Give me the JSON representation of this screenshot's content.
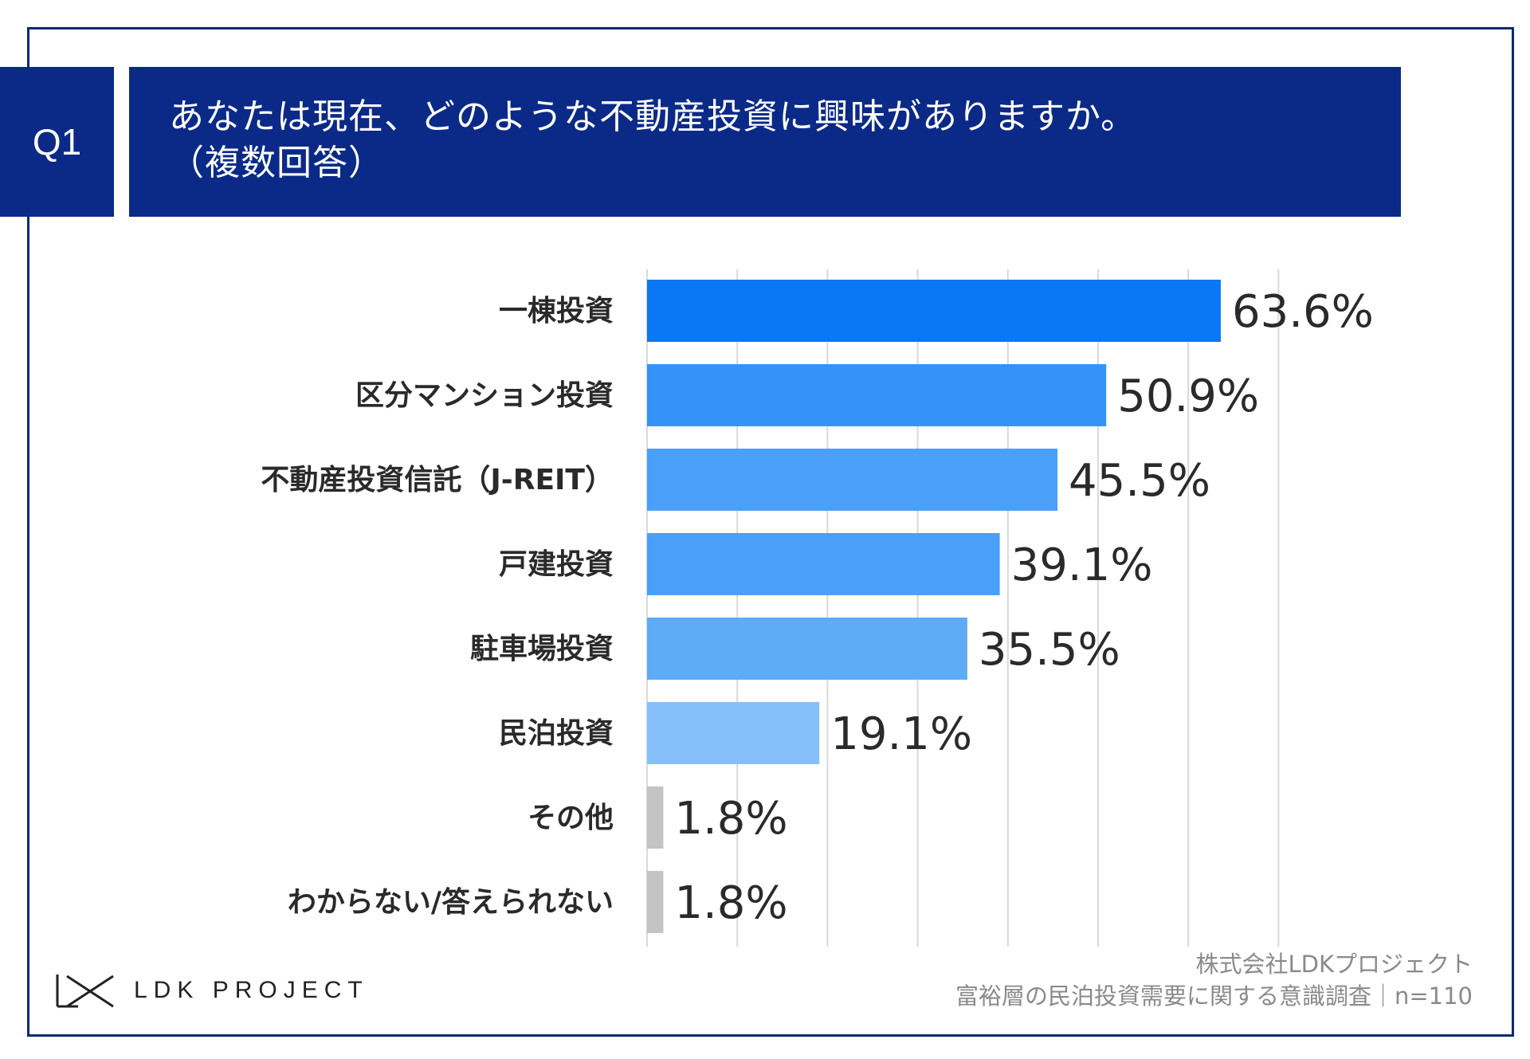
{
  "question": {
    "number": "Q1",
    "title_line1": "あなたは現在、どのような不動産投資に興味がありますか。",
    "title_line2": "（複数回答）"
  },
  "colors": {
    "frame": "#0b2a6f",
    "header_bg": "#0b2a88",
    "gridline": "#d9d9d9",
    "value_text": "#2a2a2a",
    "label_text": "#2a2a2a"
  },
  "chart_data": {
    "type": "bar",
    "orientation": "horizontal",
    "title": "あなたは現在、どのような不動産投資に興味がありますか。（複数回答）",
    "categories": [
      "一棟投資",
      "区分マンション投資",
      "不動産投資信託（J-REIT）",
      "戸建投資",
      "駐車場投資",
      "民泊投資",
      "その他",
      "わからない/答えられない"
    ],
    "values": [
      63.6,
      50.9,
      45.5,
      39.1,
      35.5,
      19.1,
      1.8,
      1.8
    ],
    "value_labels": [
      "63.6%",
      "50.9%",
      "45.5%",
      "39.1%",
      "35.5%",
      "19.1%",
      "1.8%",
      "1.8%"
    ],
    "bar_colors": [
      "#0a78f5",
      "#3593f7",
      "#4aa0f8",
      "#4aa0f8",
      "#5eabf8",
      "#85c0fb",
      "#c4c4c4",
      "#c4c4c4"
    ],
    "unit": "%",
    "xlim": [
      0,
      70
    ],
    "grid_step": 10,
    "grid": true,
    "legend": "none"
  },
  "footer": {
    "logo_text": "LDK PROJECT",
    "source_line1": "株式会社LDKプロジェクト",
    "source_line2": "富裕層の民泊投資需要に関する意識調査｜n=110"
  }
}
